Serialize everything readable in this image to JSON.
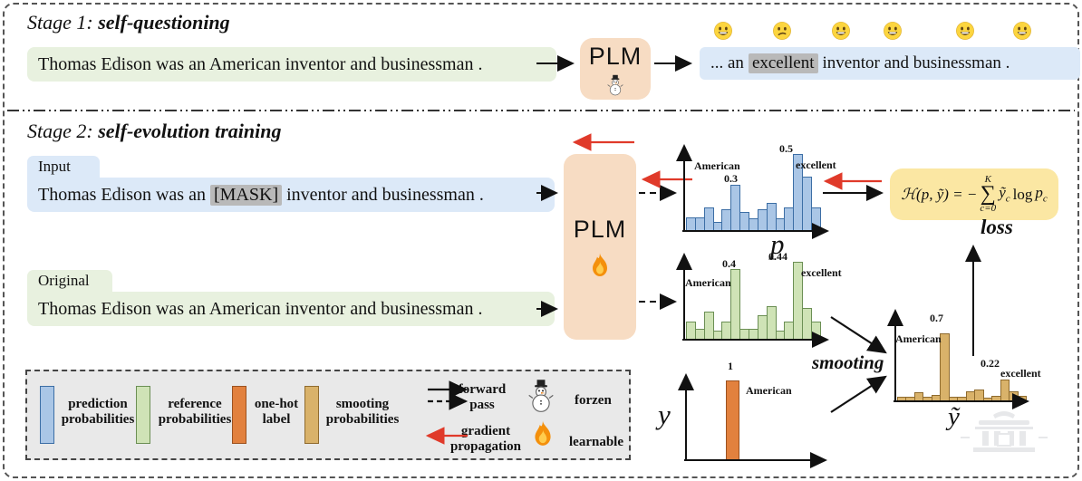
{
  "stage1": {
    "title_prefix": "Stage 1:",
    "title_bold": "self-questioning",
    "input_sentence": "Thomas Edison was an American inventor and businessman .",
    "plm_label": "PLM",
    "output_prefix": "... an",
    "output_highlight": "excellent",
    "output_suffix": "inventor and businessman .",
    "emojis": [
      "happy",
      "confused",
      "happy",
      "happy",
      "happy",
      "happy"
    ]
  },
  "stage2": {
    "title_prefix": "Stage 2:",
    "title_bold": "self-evolution training",
    "input_tab": "Input",
    "input_prefix": "Thomas Edison was an",
    "input_highlight": "[MASK]",
    "input_suffix": "inventor and businessman .",
    "original_tab": "Original",
    "original_sentence": "Thomas Edison was an American inventor and businessman .",
    "plm_label": "PLM",
    "smoothing_label": "smooting",
    "loss_label": "loss",
    "formula": {
      "lhs": "ℋ(p, ỹ) = −",
      "sum_top": "K",
      "sum_symbol": "∑",
      "sum_bottom": "c=0",
      "term_y": "ỹ",
      "term_y_sub": "c",
      "term_log": "log",
      "term_p": "p",
      "term_p_sub": "c"
    }
  },
  "chart_data": [
    {
      "id": "prediction",
      "type": "bar",
      "series_name": "prediction probabilities",
      "color": "#aac6e6",
      "stroke": "#3c6ea5",
      "values": [
        0.09,
        0.09,
        0.15,
        0.06,
        0.14,
        0.3,
        0.12,
        0.08,
        0.14,
        0.18,
        0.08,
        0.15,
        0.5,
        0.35,
        0.15
      ],
      "ylim": [
        0,
        0.55
      ],
      "xlabel": "p",
      "label_word_left": "American",
      "label_val_left": "0.3",
      "label_val_right": "0.5",
      "label_word_right": "excellent"
    },
    {
      "id": "reference",
      "type": "bar",
      "series_name": "reference probabilities",
      "color": "#cfe3b6",
      "stroke": "#6b8f54",
      "values": [
        0.1,
        0.06,
        0.16,
        0.05,
        0.1,
        0.4,
        0.06,
        0.06,
        0.14,
        0.19,
        0.05,
        0.1,
        0.44,
        0.18,
        0.1
      ],
      "ylim": [
        0,
        0.48
      ],
      "xlabel": "",
      "label_word_left": "American",
      "label_val_left": "0.4",
      "label_val_right": "0.44",
      "label_word_right": "excellent"
    },
    {
      "id": "onehot",
      "type": "bar",
      "series_name": "one-hot label",
      "color": "#e2813e",
      "stroke": "#9c5220",
      "values": [
        1
      ],
      "ylim": [
        0,
        1.07
      ],
      "xlabel": "y",
      "label_val_left": "1",
      "label_word_left": "American"
    },
    {
      "id": "smoothing",
      "type": "bar",
      "series_name": "smooting probabilities",
      "color": "#d9b26a",
      "stroke": "#8f6b2e",
      "values": [
        0.05,
        0.05,
        0.09,
        0.05,
        0.07,
        0.7,
        0.05,
        0.05,
        0.1,
        0.12,
        0.04,
        0.06,
        0.22,
        0.1,
        0.06
      ],
      "ylim": [
        0,
        0.88
      ],
      "xlabel": "ỹ",
      "label_word_left": "American",
      "label_val_left": "0.7",
      "label_val_right": "0.22",
      "label_word_right": "excellent"
    }
  ],
  "legend": {
    "items": [
      {
        "label": "prediction probabilities",
        "color": "#aac6e6",
        "stroke": "#3c6ea5"
      },
      {
        "label": "reference probabilities",
        "color": "#cfe3b6",
        "stroke": "#6b8f54"
      },
      {
        "label": "one-hot label",
        "color": "#e2813e",
        "stroke": "#9c5220"
      },
      {
        "label": "smooting probabilities",
        "color": "#d9b26a",
        "stroke": "#8f6b2e"
      }
    ],
    "forward_pass": "forward pass",
    "gradient_propagation": "gradient propagation",
    "frozen": "forzen",
    "learnable": "learnable"
  },
  "colors": {
    "red_arrow": "#e03a2a",
    "blue_box": "#dce9f8",
    "green_box": "#e8f1df",
    "plm_box": "#f7dcc3",
    "formula_box": "#fbe7a3",
    "highlight": "#b9b9b9"
  }
}
